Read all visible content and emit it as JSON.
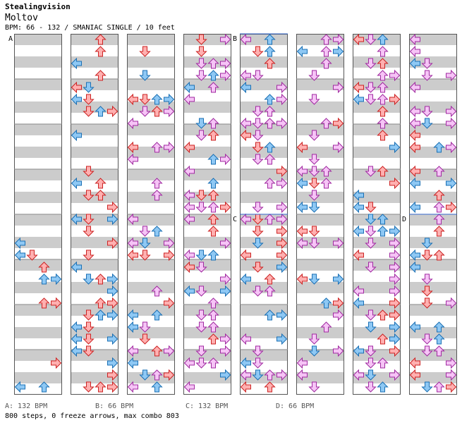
{
  "song": {
    "title": "Stealingvision",
    "artist": "Moltov",
    "info": "BPM: 66 - 132 / SMANIAC SINGLE / 10 feet"
  },
  "sections": [
    {
      "marker": "A",
      "label": "A: 132 BPM"
    },
    {
      "marker": "B",
      "label": "B: 66 BPM"
    },
    {
      "marker": "C",
      "label": "C: 132 BPM"
    },
    {
      "marker": "D",
      "label": "D: 66 BPM"
    }
  ],
  "stats": "800 steps, 0 freeze arrows, max combo 803",
  "colors": {
    "stripe": "#cccccc",
    "lane_border": "#555555",
    "red_fill": "#ffb0b0",
    "red_stroke": "#cc2222",
    "blue_fill": "#8ec8f4",
    "blue_stroke": "#1a6fb4",
    "pink_fill": "#f6c4f6",
    "pink_stroke": "#a02aa0",
    "section_line": "#3366cc"
  },
  "steps": {
    "columns": 8,
    "arrow_dirs": [
      "left",
      "down",
      "up",
      "right"
    ]
  }
}
